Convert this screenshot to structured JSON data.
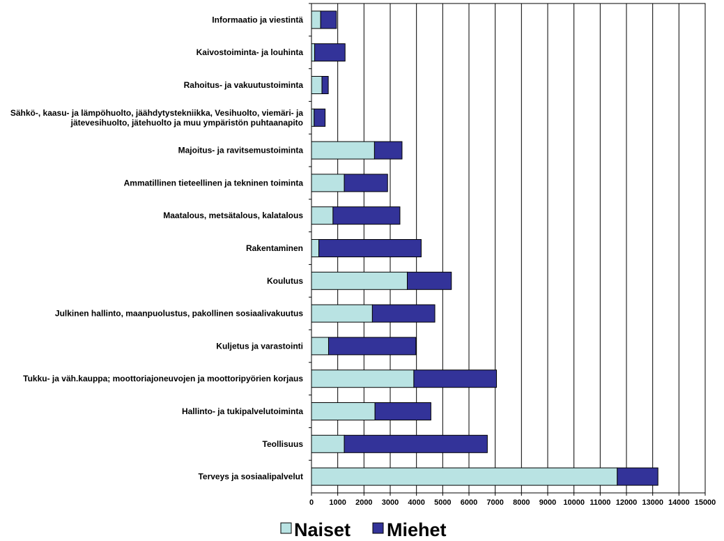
{
  "chart_data": {
    "type": "bar",
    "orientation": "horizontal",
    "stacked": true,
    "categories": [
      [
        "Informaatio ja viestintä"
      ],
      [
        "Kaivostoiminta- ja louhinta"
      ],
      [
        "Rahoitus- ja vakuutustoiminta"
      ],
      [
        "Sähkö-, kaasu- ja lämpöhuolto, jäähdytystekniikka, Vesihuolto, viemäri- ja",
        "jätevesihuolto, jätehuolto ja muu ympäristön puhtaanapito"
      ],
      [
        "Majoitus- ja ravitsemustoiminta"
      ],
      [
        "Ammatillinen tieteellinen ja tekninen toiminta"
      ],
      [
        "Maatalous, metsätalous, kalatalous"
      ],
      [
        "Rakentaminen"
      ],
      [
        "Koulutus"
      ],
      [
        "Julkinen hallinto, maanpuolustus, pakollinen sosiaalivakuutus"
      ],
      [
        "Kuljetus ja varastointi"
      ],
      [
        "Tukku- ja väh.kauppa; moottoriajoneuvojen ja moottoripyörien korjaus"
      ],
      [
        "Hallinto- ja tukipalvelutoiminta"
      ],
      [
        "Teollisuus"
      ],
      [
        "Terveys ja sosiaalipalvelut"
      ]
    ],
    "series": [
      {
        "name": "Naiset",
        "color": "#b9e3e3",
        "values": [
          350,
          120,
          400,
          100,
          2400,
          1250,
          820,
          280,
          3650,
          2320,
          650,
          3900,
          2420,
          1250,
          11650
        ]
      },
      {
        "name": "Miehet",
        "color": "#333399",
        "values": [
          600,
          1160,
          240,
          420,
          1050,
          1650,
          2550,
          3900,
          1680,
          2380,
          3330,
          3150,
          2130,
          5450,
          1550
        ]
      }
    ],
    "xticks": [
      "0",
      "1000",
      "2000",
      "3000",
      "4000",
      "5000",
      "6000",
      "7000",
      "8000",
      "9000",
      "10000",
      "11000",
      "12000",
      "13000",
      "14000",
      "15000"
    ],
    "xlim": [
      0,
      15000
    ],
    "grid": true,
    "legend_position": "bottom"
  }
}
